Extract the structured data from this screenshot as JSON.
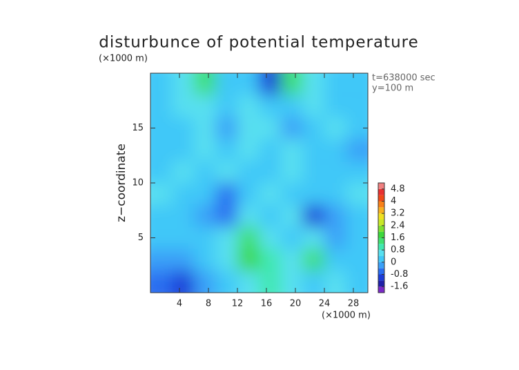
{
  "chart_data": {
    "type": "contour",
    "title": "disturbunce of potential temperature",
    "y_unit": "(×1000 m)",
    "x_unit": "(×1000 m)",
    "ylabel": "z−coordinate",
    "annotations": [
      "t=638000 sec",
      "y=100 m"
    ],
    "xlim": [
      0,
      30
    ],
    "ylim": [
      0,
      20
    ],
    "xticks": [
      4,
      8,
      12,
      16,
      20,
      24,
      28
    ],
    "yticks": [
      5,
      10,
      15
    ],
    "x": [
      1.5,
      4.5,
      7.5,
      10.5,
      13.5,
      16.5,
      19.5,
      22.5,
      25.5,
      28.5
    ],
    "z": [
      1,
      3,
      5,
      7,
      9,
      11,
      13,
      15,
      17,
      19
    ],
    "values": [
      [
        -0.8,
        -1.2,
        -0.4,
        0,
        0.4,
        0.8,
        0.4,
        0,
        0.4,
        0
      ],
      [
        -0.4,
        -0.4,
        0,
        0.4,
        1.6,
        0.8,
        0.4,
        1.2,
        0,
        0
      ],
      [
        0,
        0,
        0,
        0.4,
        1.2,
        0.4,
        0,
        0.4,
        -0.4,
        0
      ],
      [
        0,
        0,
        -0.4,
        -0.8,
        0.4,
        0,
        0.4,
        -1.2,
        -0.4,
        0
      ],
      [
        0.4,
        0,
        0,
        -0.8,
        0,
        0.4,
        0,
        0,
        0,
        0.4
      ],
      [
        0,
        0.4,
        0,
        0.4,
        0,
        0,
        0.4,
        0,
        0,
        0
      ],
      [
        0,
        0,
        0.4,
        0,
        0.4,
        0,
        0.4,
        0,
        0,
        -0.4
      ],
      [
        0,
        0,
        0.4,
        -0.4,
        0.4,
        0.4,
        -0.4,
        0,
        0.4,
        0
      ],
      [
        0,
        0.4,
        0.4,
        0,
        0.4,
        0,
        0,
        0.4,
        0,
        0
      ],
      [
        0,
        0.4,
        1.2,
        0,
        0,
        -1.2,
        1.2,
        0.4,
        0,
        0
      ]
    ],
    "colorbar": {
      "levels": [
        -2,
        -1.6,
        -1.2,
        -0.8,
        -0.4,
        0,
        0.4,
        0.8,
        1.2,
        1.6,
        2,
        2.4,
        2.8,
        3.2,
        3.6,
        4,
        4.4,
        4.8,
        5.2
      ],
      "colors": [
        "#7a28c8",
        "#2020a8",
        "#1c3cd8",
        "#2a6ef0",
        "#3aa0f8",
        "#40c8f8",
        "#58e0f0",
        "#40e8b0",
        "#40e070",
        "#3cd83c",
        "#80e030",
        "#c8e828",
        "#f0e020",
        "#f8b020",
        "#f88018",
        "#f04818",
        "#e83030",
        "#f08080"
      ],
      "ticks": [
        -1.6,
        -0.8,
        0,
        0.8,
        1.6,
        2.4,
        3.2,
        4,
        4.8
      ]
    }
  }
}
